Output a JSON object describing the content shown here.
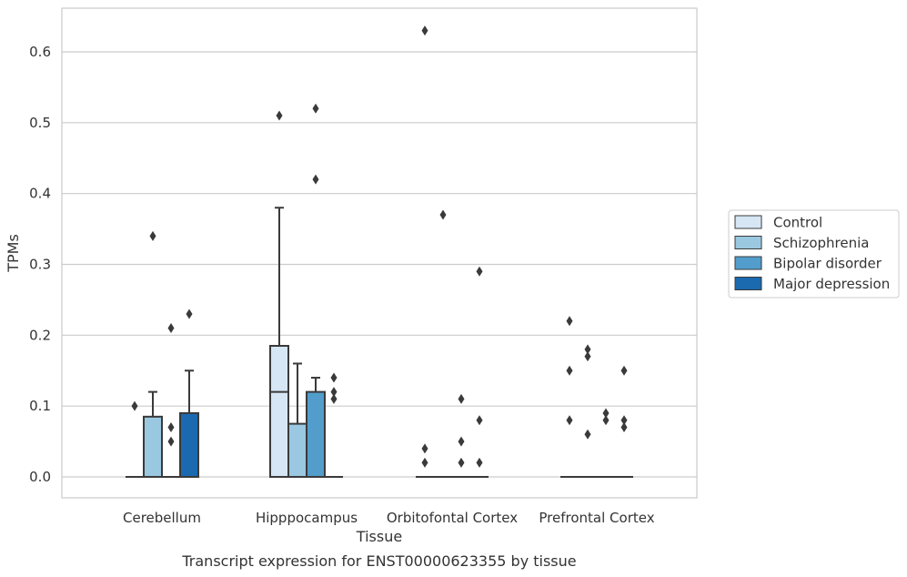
{
  "chart_data": {
    "type": "box",
    "xlabel": "Tissue",
    "ylabel": "TPMs",
    "caption": "Transcript expression for ENST00000623355 by tissue",
    "ylim": [
      -0.03,
      0.66
    ],
    "yticks": [
      "0.0",
      "0.1",
      "0.2",
      "0.3",
      "0.4",
      "0.5",
      "0.6"
    ],
    "ytick_values": [
      0,
      0.1,
      0.2,
      0.3,
      0.4,
      0.5,
      0.6
    ],
    "grid": true,
    "legend_position": "right",
    "categories": [
      "Cerebellum",
      "Hipppocampus",
      "Orbitofontal Cortex",
      "Prefrontal Cortex"
    ],
    "series": [
      {
        "name": "Control",
        "color": "#d6e6f4",
        "boxes": [
          {
            "q1": 0,
            "median": 0,
            "q3": 0,
            "whislo": 0,
            "whishi": 0,
            "fliers": [
              0.1
            ]
          },
          {
            "q1": 0,
            "median": 0.12,
            "q3": 0.185,
            "whislo": 0,
            "whishi": 0.38,
            "fliers": [
              0.51
            ]
          },
          {
            "q1": 0,
            "median": 0,
            "q3": 0,
            "whislo": 0,
            "whishi": 0,
            "fliers": [
              0.63,
              0.04,
              0.02
            ]
          },
          {
            "q1": 0,
            "median": 0,
            "q3": 0,
            "whislo": 0,
            "whishi": 0,
            "fliers": [
              0.22,
              0.15,
              0.08
            ]
          }
        ]
      },
      {
        "name": "Schizophrenia",
        "color": "#9ac8e0",
        "boxes": [
          {
            "q1": 0,
            "median": 0,
            "q3": 0.085,
            "whislo": 0,
            "whishi": 0.12,
            "fliers": [
              0.34
            ]
          },
          {
            "q1": 0,
            "median": 0,
            "q3": 0.075,
            "whislo": 0,
            "whishi": 0.16,
            "fliers": []
          },
          {
            "q1": 0,
            "median": 0,
            "q3": 0,
            "whislo": 0,
            "whishi": 0,
            "fliers": [
              0.37
            ]
          },
          {
            "q1": 0,
            "median": 0,
            "q3": 0,
            "whislo": 0,
            "whishi": 0,
            "fliers": [
              0.18,
              0.17,
              0.06
            ]
          }
        ]
      },
      {
        "name": "Bipolar disorder",
        "color": "#529dcc",
        "boxes": [
          {
            "q1": 0,
            "median": 0,
            "q3": 0,
            "whislo": 0,
            "whishi": 0,
            "fliers": [
              0.21,
              0.07,
              0.05
            ]
          },
          {
            "q1": 0,
            "median": 0,
            "q3": 0.12,
            "whislo": 0,
            "whishi": 0.14,
            "fliers": [
              0.52,
              0.42
            ]
          },
          {
            "q1": 0,
            "median": 0,
            "q3": 0,
            "whislo": 0,
            "whishi": 0,
            "fliers": [
              0.11,
              0.05,
              0.02
            ]
          },
          {
            "q1": 0,
            "median": 0,
            "q3": 0,
            "whislo": 0,
            "whishi": 0,
            "fliers": [
              0.09,
              0.08
            ]
          }
        ]
      },
      {
        "name": "Major depression",
        "color": "#1b69af",
        "boxes": [
          {
            "q1": 0,
            "median": 0,
            "q3": 0.09,
            "whislo": 0,
            "whishi": 0.15,
            "fliers": [
              0.23
            ]
          },
          {
            "q1": 0,
            "median": 0,
            "q3": 0,
            "whislo": 0,
            "whishi": 0,
            "fliers": [
              0.14,
              0.12,
              0.11
            ]
          },
          {
            "q1": 0,
            "median": 0,
            "q3": 0,
            "whislo": 0,
            "whishi": 0,
            "fliers": [
              0.29,
              0.08,
              0.02
            ]
          },
          {
            "q1": 0,
            "median": 0,
            "q3": 0,
            "whislo": 0,
            "whishi": 0,
            "fliers": [
              0.15,
              0.08,
              0.07
            ]
          }
        ]
      }
    ]
  }
}
